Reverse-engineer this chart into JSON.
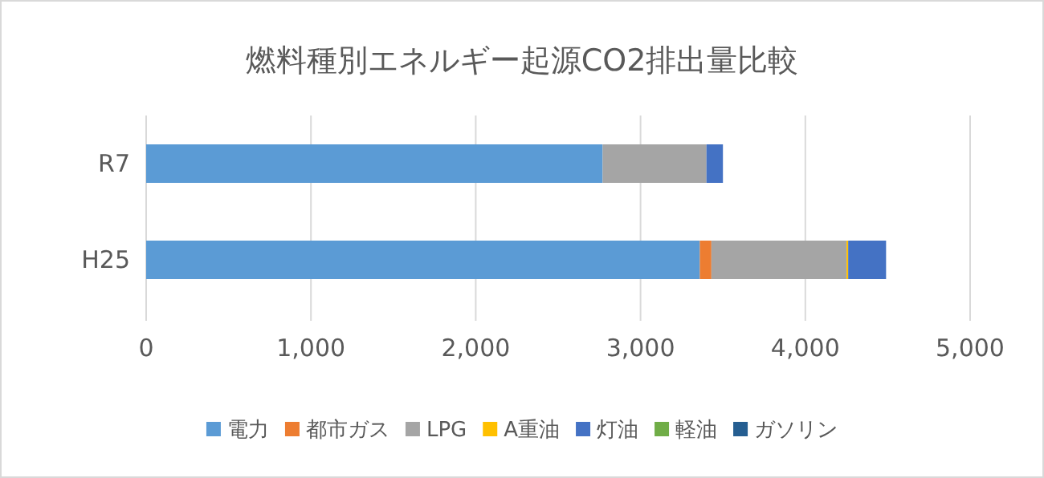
{
  "chart_data": {
    "type": "bar",
    "orientation": "horizontal",
    "stacked": true,
    "title": "燃料種別エネルギー起源CO2排出量比較",
    "categories": [
      "R7",
      "H25"
    ],
    "series": [
      {
        "name": "電力",
        "color": "#5b9bd5",
        "values": [
          2770,
          3360
        ]
      },
      {
        "name": "都市ガス",
        "color": "#ed7d31",
        "values": [
          0,
          70
        ]
      },
      {
        "name": "LPG",
        "color": "#a5a5a5",
        "values": [
          630,
          820
        ]
      },
      {
        "name": "A重油",
        "color": "#ffc000",
        "values": [
          0,
          10
        ]
      },
      {
        "name": "灯油",
        "color": "#4472c4",
        "values": [
          100,
          230
        ]
      },
      {
        "name": "軽油",
        "color": "#70ad47",
        "values": [
          0,
          0
        ]
      },
      {
        "name": "ガソリン",
        "color": "#255e91",
        "values": [
          0,
          0
        ]
      }
    ],
    "xlim": [
      0,
      5000
    ],
    "xticks": [
      {
        "value": 0,
        "label": "0"
      },
      {
        "value": 1000,
        "label": "1,000"
      },
      {
        "value": 2000,
        "label": "2,000"
      },
      {
        "value": 3000,
        "label": "3,000"
      },
      {
        "value": 4000,
        "label": "4,000"
      },
      {
        "value": 5000,
        "label": "5,000"
      }
    ],
    "grid": "x",
    "legend": "bottom"
  }
}
